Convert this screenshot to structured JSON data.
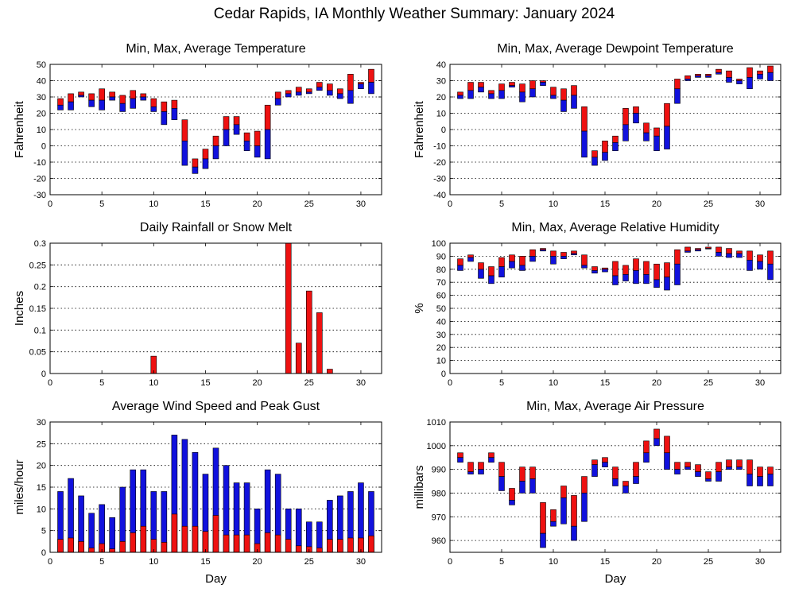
{
  "title": "Cedar Rapids, IA Monthly Weather Summary: January 2024",
  "colors": {
    "upper": "#ee1111",
    "lower": "#1111dd",
    "gust": "#1111dd",
    "avg_wind": "#ee1111",
    "rain": "#ee1111"
  },
  "chart_data": [
    {
      "id": "temp",
      "type": "bar",
      "style": "range",
      "title": "Min, Max, Average Temperature",
      "ylabel": "Fahrenheit",
      "xlabel": "",
      "xlim": [
        0,
        32
      ],
      "xticks": [
        0,
        5,
        10,
        15,
        20,
        25,
        30
      ],
      "ylim": [
        -30,
        50
      ],
      "yticks": [
        -30,
        -20,
        -10,
        0,
        10,
        20,
        30,
        40,
        50
      ],
      "grid": true,
      "x": [
        1,
        2,
        3,
        4,
        5,
        6,
        7,
        8,
        9,
        10,
        11,
        12,
        13,
        14,
        15,
        16,
        17,
        18,
        19,
        20,
        21,
        22,
        23,
        24,
        25,
        26,
        27,
        28,
        29,
        30,
        31
      ],
      "series": [
        {
          "name": "Max",
          "values": [
            29,
            32,
            33,
            32,
            35,
            33,
            31,
            34,
            32,
            29,
            27,
            28,
            16,
            -8,
            -2,
            6,
            18,
            18,
            8,
            9,
            25,
            33,
            34,
            36,
            35,
            39,
            38,
            35,
            44,
            39,
            47
          ]
        },
        {
          "name": "Average",
          "values": [
            25,
            27,
            31,
            28,
            28,
            30,
            26,
            29,
            30,
            24,
            21,
            23,
            3,
            -13,
            -8,
            0,
            10,
            13,
            3,
            0,
            10,
            29,
            32,
            33,
            33,
            36,
            34,
            32,
            34,
            38,
            39
          ]
        },
        {
          "name": "Min",
          "values": [
            22,
            22,
            30,
            24,
            22,
            28,
            21,
            23,
            28,
            21,
            13,
            16,
            -12,
            -17,
            -14,
            -8,
            0,
            7,
            -3,
            -7,
            -8,
            25,
            30,
            31,
            32,
            34,
            31,
            29,
            26,
            35,
            32
          ]
        }
      ]
    },
    {
      "id": "dew",
      "type": "bar",
      "style": "range",
      "title": "Min, Max, Average Dewpoint Temperature",
      "ylabel": "Fahrenheit",
      "xlabel": "",
      "xlim": [
        0,
        32
      ],
      "xticks": [
        0,
        5,
        10,
        15,
        20,
        25,
        30
      ],
      "ylim": [
        -40,
        40
      ],
      "yticks": [
        -40,
        -30,
        -20,
        -10,
        0,
        10,
        20,
        30,
        40
      ],
      "grid": true,
      "x": [
        1,
        2,
        3,
        4,
        5,
        6,
        7,
        8,
        9,
        10,
        11,
        12,
        13,
        14,
        15,
        16,
        17,
        18,
        19,
        20,
        21,
        22,
        23,
        24,
        25,
        26,
        27,
        28,
        29,
        30,
        31
      ],
      "series": [
        {
          "name": "Max",
          "values": [
            23,
            29,
            29,
            24,
            28,
            29,
            28,
            30,
            30,
            26,
            25,
            27,
            14,
            -13,
            -7,
            -4,
            13,
            14,
            4,
            1,
            16,
            31,
            33,
            34,
            34,
            37,
            36,
            31,
            38,
            36,
            39
          ]
        },
        {
          "name": "Average",
          "values": [
            21,
            24,
            26,
            22,
            24,
            27,
            23,
            25,
            29,
            21,
            18,
            21,
            -1,
            -17,
            -14,
            -8,
            3,
            10,
            -2,
            -4,
            2,
            25,
            31,
            33,
            33,
            35,
            32,
            30,
            32,
            34,
            35
          ]
        },
        {
          "name": "Min",
          "values": [
            19,
            19,
            23,
            19,
            19,
            26,
            17,
            20,
            27,
            19,
            11,
            13,
            -17,
            -22,
            -19,
            -13,
            -7,
            4,
            -7,
            -13,
            -12,
            16,
            30,
            32,
            32,
            34,
            29,
            28,
            25,
            31,
            30
          ]
        }
      ]
    },
    {
      "id": "rain",
      "type": "bar",
      "style": "simple",
      "title": "Daily Rainfall or Snow Melt",
      "ylabel": "Inches",
      "xlabel": "",
      "xlim": [
        0,
        32
      ],
      "xticks": [
        0,
        5,
        10,
        15,
        20,
        25,
        30
      ],
      "ylim": [
        0,
        0.3
      ],
      "yticks": [
        0,
        0.05,
        0.1,
        0.15,
        0.2,
        0.25,
        0.3
      ],
      "grid": true,
      "x": [
        1,
        2,
        3,
        4,
        5,
        6,
        7,
        8,
        9,
        10,
        11,
        12,
        13,
        14,
        15,
        16,
        17,
        18,
        19,
        20,
        21,
        22,
        23,
        24,
        25,
        26,
        27,
        28,
        29,
        30,
        31
      ],
      "series": [
        {
          "name": "Rain",
          "values": [
            0,
            0,
            0,
            0,
            0,
            0,
            0,
            0,
            0,
            0.04,
            0,
            0,
            0,
            0,
            0,
            0,
            0,
            0,
            0,
            0,
            0,
            0,
            0.3,
            0.07,
            0.19,
            0.14,
            0.01,
            0,
            0,
            0,
            0
          ]
        }
      ]
    },
    {
      "id": "rh",
      "type": "bar",
      "style": "range",
      "title": "Min, Max, Average Relative Humidity",
      "ylabel": "%",
      "xlabel": "",
      "xlim": [
        0,
        32
      ],
      "xticks": [
        0,
        5,
        10,
        15,
        20,
        25,
        30
      ],
      "ylim": [
        0,
        100
      ],
      "yticks": [
        0,
        10,
        20,
        30,
        40,
        50,
        60,
        70,
        80,
        90,
        100
      ],
      "grid": true,
      "x": [
        1,
        2,
        3,
        4,
        5,
        6,
        7,
        8,
        9,
        10,
        11,
        12,
        13,
        14,
        15,
        16,
        17,
        18,
        19,
        20,
        21,
        22,
        23,
        24,
        25,
        26,
        27,
        28,
        29,
        30,
        31
      ],
      "series": [
        {
          "name": "Max",
          "values": [
            88,
            91,
            85,
            82,
            89,
            91,
            90,
            95,
            96,
            94,
            93,
            94,
            91,
            82,
            81,
            86,
            83,
            88,
            86,
            84,
            85,
            95,
            97,
            96,
            97,
            97,
            96,
            94,
            94,
            91,
            94
          ]
        },
        {
          "name": "Average",
          "values": [
            83,
            89,
            80,
            75,
            82,
            86,
            83,
            90,
            95,
            90,
            90,
            92,
            83,
            79,
            80,
            75,
            76,
            79,
            76,
            72,
            74,
            84,
            94,
            95,
            96,
            93,
            92,
            92,
            87,
            86,
            84
          ]
        },
        {
          "name": "Min",
          "values": [
            79,
            86,
            73,
            69,
            74,
            81,
            79,
            86,
            94,
            84,
            88,
            91,
            81,
            77,
            78,
            68,
            71,
            69,
            69,
            66,
            64,
            68,
            93,
            94,
            96,
            90,
            89,
            89,
            79,
            80,
            72
          ]
        }
      ]
    },
    {
      "id": "wind",
      "type": "bar",
      "style": "overlay",
      "title": "Average Wind Speed and Peak Gust",
      "ylabel": "miles/hour",
      "xlabel": "Day",
      "xlim": [
        0,
        32
      ],
      "xticks": [
        0,
        5,
        10,
        15,
        20,
        25,
        30
      ],
      "ylim": [
        0,
        30
      ],
      "yticks": [
        0,
        5,
        10,
        15,
        20,
        25,
        30
      ],
      "grid": true,
      "x": [
        1,
        2,
        3,
        4,
        5,
        6,
        7,
        8,
        9,
        10,
        11,
        12,
        13,
        14,
        15,
        16,
        17,
        18,
        19,
        20,
        21,
        22,
        23,
        24,
        25,
        26,
        27,
        28,
        29,
        30,
        31
      ],
      "series": [
        {
          "name": "Peak Gust",
          "values": [
            14,
            17,
            13,
            9,
            11,
            8,
            15,
            19,
            19,
            14,
            14,
            27,
            26,
            23,
            18,
            24,
            20,
            16,
            16,
            10,
            19,
            18,
            10,
            10,
            7,
            7,
            12,
            13,
            14,
            16,
            14
          ]
        },
        {
          "name": "Average Wind Speed",
          "values": [
            3,
            3.3,
            2.5,
            1,
            2,
            0.8,
            2.5,
            4.5,
            6,
            3,
            2.3,
            8.8,
            6,
            6,
            4.8,
            8.5,
            4,
            4,
            4,
            2,
            4.5,
            4,
            3,
            1.5,
            1.3,
            1,
            3,
            3,
            3.3,
            3.3,
            3.8
          ]
        }
      ]
    },
    {
      "id": "press",
      "type": "bar",
      "style": "range",
      "title": "Min, Max, Average Air Pressure",
      "ylabel": "millibars",
      "xlabel": "Day",
      "xlim": [
        0,
        32
      ],
      "xticks": [
        0,
        5,
        10,
        15,
        20,
        25,
        30
      ],
      "ylim": [
        955,
        1010
      ],
      "yticks": [
        960,
        970,
        980,
        990,
        1000,
        1010
      ],
      "grid": true,
      "x": [
        1,
        2,
        3,
        4,
        5,
        6,
        7,
        8,
        9,
        10,
        11,
        12,
        13,
        14,
        15,
        16,
        17,
        18,
        19,
        20,
        21,
        22,
        23,
        24,
        25,
        26,
        27,
        28,
        29,
        30,
        31
      ],
      "series": [
        {
          "name": "Max",
          "values": [
            997,
            993,
            993,
            997,
            993,
            982,
            991,
            991,
            976,
            973,
            983,
            979,
            987,
            994,
            995,
            991,
            985,
            993,
            1002,
            1007,
            1004,
            993,
            993,
            992,
            989,
            993,
            994,
            994,
            994,
            991,
            991
          ]
        },
        {
          "name": "Average",
          "values": [
            995,
            989,
            990,
            995,
            987,
            977,
            985,
            986,
            963,
            968,
            978,
            966,
            980,
            992,
            993,
            986,
            983,
            987,
            997,
            1003,
            997,
            990,
            991,
            989,
            986,
            989,
            991,
            991,
            988,
            987,
            988
          ]
        },
        {
          "name": "Min",
          "values": [
            993,
            988,
            988,
            993,
            981,
            975,
            980,
            980,
            957,
            966,
            967,
            960,
            968,
            987,
            991,
            983,
            980,
            984,
            993,
            1000,
            990,
            988,
            990,
            987,
            985,
            985,
            990,
            990,
            983,
            983,
            983
          ]
        }
      ]
    }
  ]
}
